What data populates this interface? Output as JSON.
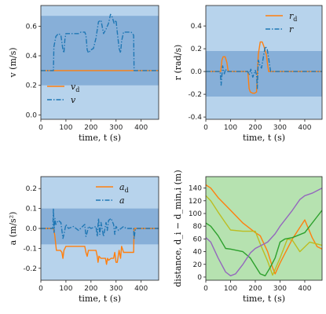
{
  "chart_data": [
    {
      "type": "line",
      "xlabel": "time, t (s)",
      "ylabel": "v (m/s)",
      "xlim": [
        0,
        470
      ],
      "ylim": [
        -0.03,
        0.74
      ],
      "xticks": [
        "0",
        "100",
        "200",
        "300",
        "400"
      ],
      "yticks": [
        "0.0",
        "0.2",
        "0.4",
        "0.6"
      ],
      "legend_position": "bottom-left",
      "bands": [
        {
          "from": -0.03,
          "to": 0.74,
          "color": "#b7d3ec"
        },
        {
          "from": 0.2,
          "to": 0.67,
          "color": "#87afd8"
        }
      ],
      "series": [
        {
          "name": "v_d",
          "color": "#ff7f0e",
          "dash": "solid",
          "x": [
            0,
            470
          ],
          "y": [
            0.3,
            0.3
          ]
        },
        {
          "name": "v",
          "color": "#1f77b4",
          "dash": "dashdot",
          "x": [
            0,
            50,
            52,
            60,
            70,
            80,
            88,
            92,
            96,
            100,
            110,
            120,
            150,
            160,
            175,
            180,
            185,
            190,
            200,
            210,
            220,
            230,
            240,
            250,
            260,
            270,
            278,
            285,
            292,
            300,
            305,
            312,
            318,
            322,
            330,
            340,
            350,
            360,
            370,
            372,
            380,
            470
          ],
          "y": [
            0.3,
            0.3,
            0.46,
            0.53,
            0.55,
            0.54,
            0.44,
            0.42,
            0.51,
            0.55,
            0.55,
            0.55,
            0.55,
            0.56,
            0.56,
            0.54,
            0.44,
            0.42,
            0.44,
            0.45,
            0.52,
            0.63,
            0.64,
            0.55,
            0.58,
            0.62,
            0.68,
            0.66,
            0.62,
            0.64,
            0.56,
            0.45,
            0.42,
            0.5,
            0.56,
            0.56,
            0.56,
            0.56,
            0.54,
            0.3,
            0.3,
            0.3
          ]
        }
      ]
    },
    {
      "type": "line",
      "xlabel": "time, t (s)",
      "ylabel": "r (rad/s)",
      "xlim": [
        0,
        470
      ],
      "ylim": [
        -0.42,
        0.58
      ],
      "xticks": [
        "0",
        "100",
        "200",
        "300",
        "400"
      ],
      "yticks": [
        "-0.4",
        "-0.2",
        "0.0",
        "0.2",
        "0.4"
      ],
      "legend_position": "top-right",
      "bands": [
        {
          "from": -0.42,
          "to": 0.58,
          "color": "#b7d3ec"
        },
        {
          "from": -0.22,
          "to": 0.18,
          "color": "#87afd8"
        }
      ],
      "series": [
        {
          "name": "r_d",
          "color": "#ff7f0e",
          "dash": "solid",
          "x": [
            0,
            55,
            60,
            65,
            70,
            78,
            85,
            90,
            95,
            170,
            175,
            180,
            190,
            198,
            205,
            212,
            220,
            228,
            235,
            245,
            250,
            254,
            258,
            470
          ],
          "y": [
            0,
            0,
            0,
            0.1,
            0.13,
            0.13,
            0.08,
            0.01,
            0,
            0,
            -0.15,
            -0.18,
            -0.19,
            -0.19,
            -0.18,
            0.15,
            0.26,
            0.26,
            0.22,
            0.15,
            0.06,
            0,
            0,
            0
          ]
        },
        {
          "name": "r",
          "color": "#1f77b4",
          "dash": "dashdot",
          "x": [
            0,
            50,
            58,
            62,
            68,
            75,
            80,
            85,
            90,
            170,
            175,
            182,
            190,
            200,
            205,
            208,
            212,
            218,
            225,
            232,
            240,
            248,
            255,
            262,
            470
          ],
          "y": [
            0,
            0,
            0,
            -0.12,
            0.05,
            -0.02,
            0.02,
            0,
            0,
            0,
            -0.03,
            0.02,
            -0.05,
            0.01,
            -0.03,
            -0.15,
            0.1,
            0.06,
            0.03,
            0.12,
            0.22,
            0.2,
            0.1,
            0,
            0
          ]
        }
      ]
    },
    {
      "type": "line",
      "xlabel": "time, t (s)",
      "ylabel": "a (m/s²)",
      "xlim": [
        0,
        470
      ],
      "ylim": [
        -0.26,
        0.26
      ],
      "xticks": [
        "0",
        "100",
        "200",
        "300",
        "400"
      ],
      "yticks": [
        "-0.2",
        "-0.1",
        "0.0",
        "0.1",
        "0.2"
      ],
      "legend_position": "top-right",
      "bands": [
        {
          "from": -0.26,
          "to": 0.26,
          "color": "#b7d3ec"
        },
        {
          "from": -0.08,
          "to": 0.1,
          "color": "#87afd8"
        }
      ],
      "series": [
        {
          "name": "a_d",
          "color": "#ff7f0e",
          "dash": "solid",
          "x": [
            0,
            50,
            55,
            62,
            70,
            78,
            84,
            88,
            92,
            100,
            140,
            175,
            180,
            185,
            190,
            200,
            210,
            220,
            225,
            228,
            232,
            240,
            250,
            258,
            262,
            266,
            270,
            280,
            290,
            295,
            300,
            305,
            312,
            318,
            322,
            330,
            340,
            355,
            370,
            372,
            380,
            470
          ],
          "y": [
            0,
            0,
            -0.03,
            -0.11,
            -0.11,
            -0.11,
            -0.12,
            -0.15,
            -0.11,
            -0.09,
            -0.09,
            -0.09,
            -0.12,
            -0.14,
            -0.11,
            -0.11,
            -0.11,
            -0.11,
            -0.14,
            -0.17,
            -0.14,
            -0.15,
            -0.15,
            -0.15,
            -0.18,
            -0.15,
            -0.16,
            -0.15,
            -0.15,
            -0.12,
            -0.17,
            -0.17,
            -0.11,
            -0.15,
            -0.09,
            -0.12,
            -0.12,
            -0.12,
            -0.12,
            0,
            0,
            0
          ]
        },
        {
          "name": "a",
          "color": "#1f77b4",
          "dash": "dashdot",
          "x": [
            0,
            48,
            50,
            53,
            56,
            60,
            70,
            80,
            88,
            92,
            100,
            110,
            130,
            150,
            175,
            180,
            185,
            190,
            200,
            220,
            225,
            230,
            235,
            240,
            250,
            260,
            265,
            270,
            280,
            290,
            295,
            300,
            310,
            320,
            330,
            340,
            370,
            372,
            374,
            376,
            380,
            470
          ],
          "y": [
            0,
            0,
            0.1,
            -0.02,
            0.05,
            0.02,
            0.04,
            0.03,
            -0.05,
            -0.03,
            0.02,
            0,
            0.01,
            -0.01,
            0.02,
            -0.04,
            -0.02,
            0.01,
            0,
            0.01,
            -0.04,
            0.05,
            -0.03,
            0.03,
            -0.04,
            0.03,
            -0.01,
            0.04,
            0.05,
            0.02,
            -0.03,
            0.01,
            -0.01,
            0,
            0.01,
            0,
            0,
            -0.05,
            -0.03,
            -0.01,
            0,
            0
          ]
        }
      ]
    },
    {
      "type": "line",
      "xlabel": "time, t (s)",
      "ylabel": "distance, d_i − d_min,i (m)",
      "xlim": [
        0,
        470
      ],
      "ylim": [
        -5,
        158
      ],
      "xticks": [
        "0",
        "100",
        "200",
        "300",
        "400"
      ],
      "yticks": [
        "0",
        "20",
        "40",
        "60",
        "80",
        "100",
        "120",
        "140"
      ],
      "legend_position": "",
      "bands": [
        {
          "from": -5,
          "to": 158,
          "color": "#b6e2b0"
        }
      ],
      "series": [
        {
          "color": "#ff7f0e",
          "dash": "solid",
          "x": [
            0,
            20,
            50,
            100,
            150,
            200,
            220,
            250,
            270,
            280,
            300,
            350,
            400,
            430,
            450,
            470
          ],
          "y": [
            145,
            140,
            125,
            105,
            85,
            70,
            65,
            40,
            15,
            5,
            22,
            60,
            90,
            62,
            48,
            44
          ]
        },
        {
          "color": "#bcbd22",
          "dash": "solid",
          "x": [
            0,
            20,
            50,
            80,
            100,
            150,
            200,
            220,
            250,
            270,
            300,
            330,
            350,
            380,
            420,
            450,
            470
          ],
          "y": [
            128,
            120,
            102,
            85,
            74,
            72,
            72,
            52,
            25,
            3,
            30,
            60,
            58,
            40,
            55,
            52,
            50
          ]
        },
        {
          "color": "#2ca02c",
          "dash": "solid",
          "x": [
            0,
            20,
            50,
            80,
            100,
            150,
            180,
            220,
            240,
            260,
            280,
            300,
            320,
            350,
            400,
            450,
            470
          ],
          "y": [
            85,
            80,
            65,
            45,
            44,
            40,
            30,
            5,
            2,
            15,
            30,
            55,
            60,
            62,
            70,
            95,
            105
          ]
        },
        {
          "color": "#9467bd",
          "dash": "solid",
          "x": [
            0,
            20,
            50,
            80,
            100,
            120,
            150,
            180,
            200,
            250,
            280,
            300,
            350,
            380,
            400,
            430,
            470
          ],
          "y": [
            62,
            55,
            30,
            8,
            2,
            5,
            20,
            38,
            45,
            55,
            68,
            80,
            105,
            122,
            128,
            132,
            140
          ]
        }
      ]
    }
  ]
}
